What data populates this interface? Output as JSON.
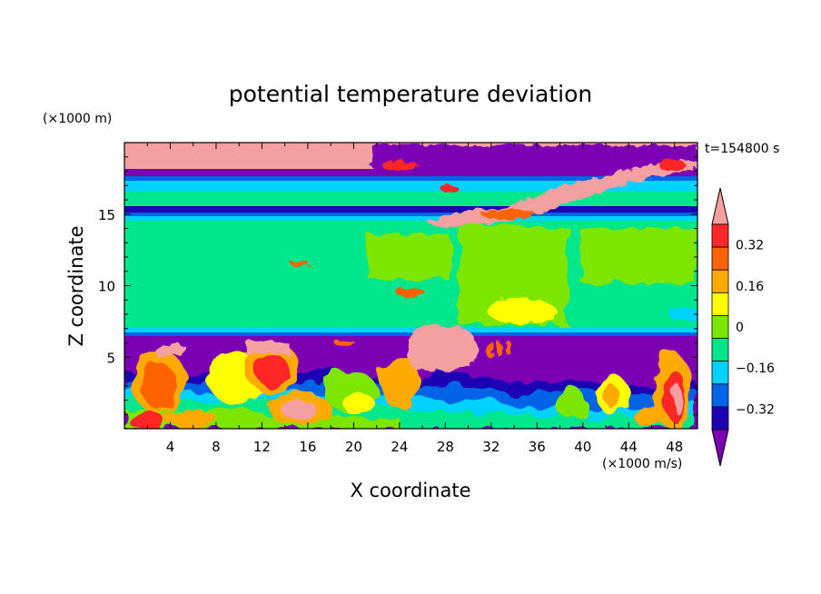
{
  "chart_data": {
    "type": "heatmap",
    "title": "potential temperature deviation",
    "xlabel": "X coordinate",
    "ylabel": "Z coordinate",
    "x_unit": "(×1000 m/s)",
    "y_unit": "(×1000 m)",
    "time_label": "t=154800 s",
    "xlim": [
      0,
      50
    ],
    "ylim": [
      0,
      20
    ],
    "x_ticks": [
      4,
      8,
      12,
      16,
      20,
      24,
      28,
      32,
      36,
      40,
      44,
      48
    ],
    "y_ticks": [
      5,
      10,
      15
    ],
    "colorbar": {
      "levels": [
        -0.4,
        -0.32,
        -0.24,
        -0.16,
        -0.08,
        0,
        0.08,
        0.16,
        0.24,
        0.32,
        0.4
      ],
      "colors": [
        "#7b00b4",
        "#1e00b4",
        "#0064e6",
        "#00d2ff",
        "#00e68c",
        "#7de600",
        "#ffff00",
        "#ffaa00",
        "#ff6400",
        "#ff2828",
        "#f5a0a0"
      ],
      "tick_labels": [
        "0.32",
        "0.16",
        "0",
        "−0.16",
        "−0.32"
      ],
      "tick_values": [
        0.32,
        0.16,
        0,
        -0.16,
        -0.32
      ]
    }
  }
}
